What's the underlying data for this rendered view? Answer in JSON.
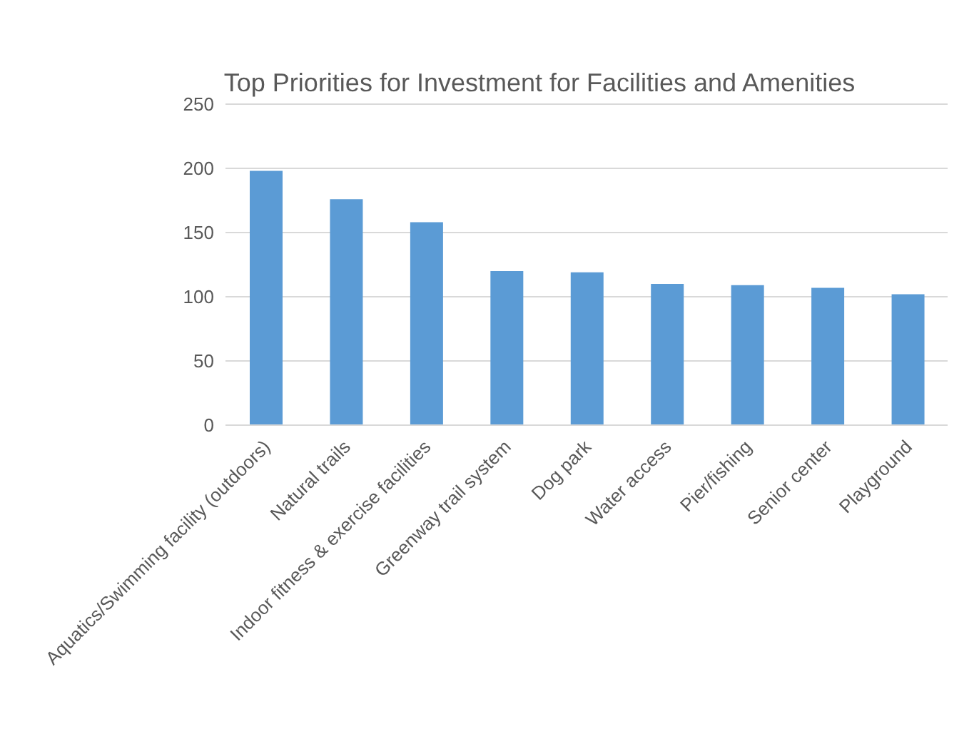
{
  "chart_data": {
    "type": "bar",
    "title": "Top Priorities for Investment for Facilities and Amenities",
    "categories": [
      "Aquatics/Swimming facility (outdoors)",
      "Natural trails",
      "Indoor fitness & exercise facilities",
      "Greenway trail system",
      "Dog park",
      "Water access",
      "Pier/fishing",
      "Senior center",
      "Playground"
    ],
    "values": [
      198,
      176,
      158,
      120,
      119,
      110,
      109,
      107,
      102
    ],
    "color": "#5b9bd5",
    "ylim": [
      0,
      250
    ],
    "yticks": [
      0,
      50,
      100,
      150,
      200,
      250
    ],
    "grid": "y"
  }
}
